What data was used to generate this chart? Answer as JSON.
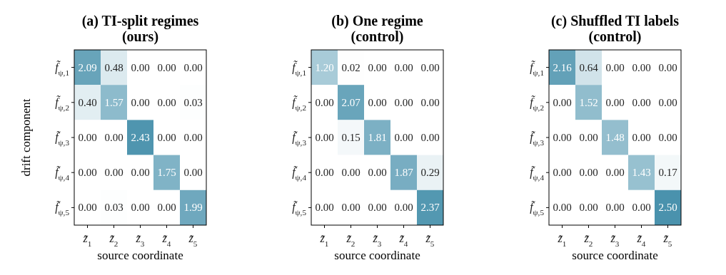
{
  "chart_data": [
    {
      "type": "heatmap",
      "title": "(a) TI-split regimes\n(ours)",
      "xlabel": "source coordinate",
      "ylabel": "drift component",
      "categories": [
        "z̃$_{1}$",
        "z̃$_{2}$",
        "z̃$_{3}$",
        "z̃$_{4}$",
        "z̃$_{5}$"
      ],
      "y_categories": [
        "f̃$_{ψ,1}$",
        "f̃$_{ψ,2}$",
        "f̃$_{ψ,3}$",
        "f̃$_{ψ,4}$",
        "f̃$_{ψ,5}$"
      ],
      "cells": [
        [
          2.09,
          0.48,
          0,
          0,
          0
        ],
        [
          0.4,
          1.57,
          0,
          0,
          0.03
        ],
        [
          0,
          0,
          2.43,
          0,
          0
        ],
        [
          0,
          0,
          0,
          1.75,
          0
        ],
        [
          0,
          0.03,
          0,
          0,
          1.99
        ]
      ],
      "cell_labels": [
        [
          "2.09",
          "0.48",
          "0.00",
          "0.00",
          "0.00"
        ],
        [
          "0.40",
          "1.57",
          "0.00",
          "0.00",
          "0.03"
        ],
        [
          "0.00",
          "0.00",
          "2.43",
          "0.00",
          "0.00"
        ],
        [
          "0.00",
          "0.00",
          "0.00",
          "1.75",
          "0.00"
        ],
        [
          "0.00",
          "0.03",
          "0.00",
          "0.00",
          "1.99"
        ]
      ]
    },
    {
      "type": "heatmap",
      "title": "(b) One regime\n(control)",
      "xlabel": "source coordinate",
      "categories": [
        "z̃$_{1}$",
        "z̃$_{2}$",
        "z̃$_{3}$",
        "z̃$_{4}$",
        "z̃$_{5}$"
      ],
      "y_categories": [
        "f̃$_{ψ,1}$",
        "f̃$_{ψ,2}$",
        "f̃$_{ψ,3}$",
        "f̃$_{ψ,4}$",
        "f̃$_{ψ,5}$"
      ],
      "cells": [
        [
          1.2,
          0.02,
          0,
          0,
          0
        ],
        [
          0,
          2.07,
          0,
          0,
          0
        ],
        [
          0,
          0.15,
          1.81,
          0,
          0
        ],
        [
          0,
          0,
          0,
          1.87,
          0.29
        ],
        [
          0,
          0,
          0,
          0,
          2.37
        ]
      ],
      "cell_labels": [
        [
          "1.20",
          "0.02",
          "0.00",
          "0.00",
          "0.00"
        ],
        [
          "0.00",
          "2.07",
          "0.00",
          "0.00",
          "0.00"
        ],
        [
          "0.00",
          "0.15",
          "1.81",
          "0.00",
          "0.00"
        ],
        [
          "0.00",
          "0.00",
          "0.00",
          "1.87",
          "0.29"
        ],
        [
          "0.00",
          "0.00",
          "0.00",
          "0.00",
          "2.37"
        ]
      ]
    },
    {
      "type": "heatmap",
      "title": "(c) Shuffled TI labels\n(control)",
      "xlabel": "source coordinate",
      "categories": [
        "z̃$_{1}$",
        "z̃$_{2}$",
        "z̃$_{3}$",
        "z̃$_{4}$",
        "z̃$_{5}$"
      ],
      "y_categories": [
        "f̃$_{ψ,1}$",
        "f̃$_{ψ,2}$",
        "f̃$_{ψ,3}$",
        "f̃$_{ψ,4}$",
        "f̃$_{ψ,5}$"
      ],
      "cells": [
        [
          2.16,
          0.64,
          0,
          0,
          0
        ],
        [
          0,
          1.52,
          0,
          0,
          0
        ],
        [
          0,
          0,
          1.48,
          0,
          0
        ],
        [
          0,
          0,
          0,
          1.43,
          0.17
        ],
        [
          0,
          0,
          0,
          0,
          2.5
        ]
      ],
      "cell_labels": [
        [
          "2.16",
          "0.64",
          "0.00",
          "0.00",
          "0.00"
        ],
        [
          "0.00",
          "1.52",
          "0.00",
          "0.00",
          "0.00"
        ],
        [
          "0.00",
          "0.00",
          "1.48",
          "0.00",
          "0.00"
        ],
        [
          "0.00",
          "0.00",
          "0.00",
          "1.43",
          "0.17"
        ],
        [
          "0.00",
          "0.00",
          "0.00",
          "0.00",
          "2.50"
        ]
      ]
    }
  ]
}
